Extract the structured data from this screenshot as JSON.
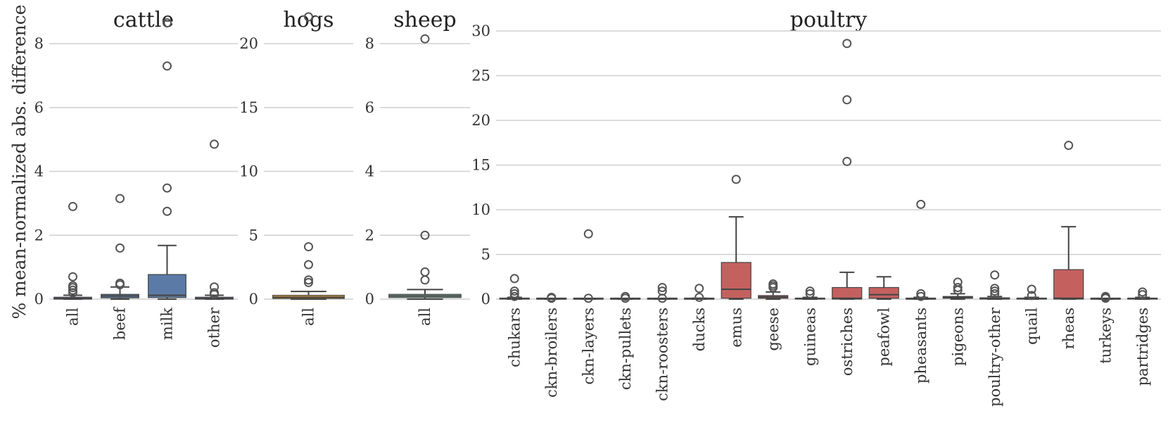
{
  "ylabel": "% mean-normalized abs. difference",
  "chart_data": [
    {
      "type": "box",
      "title": "cattle",
      "ylabel": "% mean-normalized abs. difference",
      "ylim": [
        0,
        9.3
      ],
      "yticks": [
        0,
        2,
        4,
        6,
        8
      ],
      "grid": true,
      "color": "#5b7aa6",
      "categories": [
        "all",
        "beef",
        "milk",
        "other"
      ],
      "boxes": [
        {
          "q1": 0,
          "median": 0.02,
          "q3": 0.06,
          "whislo": 0,
          "whishi": 0.12,
          "fliers": [
            0.2,
            0.28,
            0.36,
            0.42,
            0.7,
            2.9
          ]
        },
        {
          "q1": 0.04,
          "median": 0.1,
          "q3": 0.15,
          "whislo": 0,
          "whishi": 0.38,
          "fliers": [
            0.45,
            0.5,
            1.6,
            3.15
          ]
        },
        {
          "q1": 0.05,
          "median": 0.12,
          "q3": 0.77,
          "whislo": 0,
          "whishi": 1.68,
          "fliers": [
            2.75,
            3.48,
            7.3,
            8.65
          ]
        },
        {
          "q1": 0,
          "median": 0.02,
          "q3": 0.06,
          "whislo": 0,
          "whishi": 0.12,
          "fliers": [
            0.15,
            0.2,
            0.38,
            4.85
          ]
        }
      ]
    },
    {
      "type": "box",
      "title": "hogs",
      "ylim": [
        0,
        23.2
      ],
      "yticks": [
        0,
        5,
        10,
        15,
        20
      ],
      "grid": true,
      "color": "#e8a33d",
      "categories": [
        "all"
      ],
      "boxes": [
        {
          "q1": 0.05,
          "median": 0.15,
          "q3": 0.3,
          "whislo": 0,
          "whishi": 0.6,
          "fliers": [
            1.3,
            1.5,
            2.7,
            4.1,
            22.1
          ]
        }
      ]
    },
    {
      "type": "box",
      "title": "sheep",
      "ylim": [
        0,
        8.6
      ],
      "yticks": [
        0,
        2,
        4,
        6,
        8
      ],
      "grid": true,
      "color": "#7fae9a",
      "categories": [
        "all"
      ],
      "boxes": [
        {
          "q1": 0.05,
          "median": 0.1,
          "q3": 0.15,
          "whislo": 0,
          "whishi": 0.3,
          "fliers": [
            0.6,
            0.85,
            2.0,
            8.15
          ]
        }
      ]
    },
    {
      "type": "box",
      "title": "poultry",
      "ylim": [
        0,
        30.4
      ],
      "yticks": [
        0,
        5,
        10,
        15,
        20,
        25,
        30
      ],
      "grid": true,
      "color": "#c4615f",
      "categories": [
        "chukars",
        "ckn-broilers",
        "ckn-layers",
        "ckn-pullets",
        "ckn-roosters",
        "ducks",
        "emus",
        "geese",
        "guineas",
        "ostriches",
        "peafowl",
        "pheasants",
        "pigeons",
        "poultry-other",
        "quail",
        "rheas",
        "turkeys",
        "partridges"
      ],
      "boxes": [
        {
          "q1": 0,
          "median": 0.05,
          "q3": 0.1,
          "whislo": 0,
          "whishi": 0.2,
          "fliers": [
            0.3,
            0.6,
            0.9,
            2.3
          ]
        },
        {
          "q1": 0,
          "median": 0.02,
          "q3": 0.04,
          "whislo": 0,
          "whishi": 0.06,
          "fliers": [
            0.1,
            0.2
          ]
        },
        {
          "q1": 0,
          "median": 0.02,
          "q3": 0.04,
          "whislo": 0,
          "whishi": 0.06,
          "fliers": [
            0.1,
            7.3
          ]
        },
        {
          "q1": 0,
          "median": 0.02,
          "q3": 0.04,
          "whislo": 0,
          "whishi": 0.06,
          "fliers": [
            0.1,
            0.3
          ]
        },
        {
          "q1": 0,
          "median": 0.02,
          "q3": 0.04,
          "whislo": 0,
          "whishi": 0.06,
          "fliers": [
            0.1,
            0.9,
            1.3
          ]
        },
        {
          "q1": 0,
          "median": 0.02,
          "q3": 0.06,
          "whislo": 0,
          "whishi": 0.1,
          "fliers": [
            0.2,
            1.2
          ]
        },
        {
          "q1": 0.1,
          "median": 1.1,
          "q3": 4.1,
          "whislo": 0,
          "whishi": 9.2,
          "fliers": [
            13.4
          ]
        },
        {
          "q1": 0.1,
          "median": 0.25,
          "q3": 0.4,
          "whislo": 0,
          "whishi": 0.8,
          "fliers": [
            1.3,
            1.5,
            1.7
          ]
        },
        {
          "q1": 0,
          "median": 0.05,
          "q3": 0.1,
          "whislo": 0,
          "whishi": 0.2,
          "fliers": [
            0.6,
            0.9
          ]
        },
        {
          "q1": 0,
          "median": 0.1,
          "q3": 1.3,
          "whislo": 0,
          "whishi": 3.0,
          "fliers": [
            15.4,
            22.3,
            28.6
          ]
        },
        {
          "q1": 0.1,
          "median": 0.5,
          "q3": 1.3,
          "whislo": 0,
          "whishi": 2.5,
          "fliers": []
        },
        {
          "q1": 0,
          "median": 0.02,
          "q3": 0.1,
          "whislo": 0,
          "whishi": 0.2,
          "fliers": [
            0.3,
            0.6,
            10.6
          ]
        },
        {
          "q1": 0.1,
          "median": 0.2,
          "q3": 0.3,
          "whislo": 0,
          "whishi": 0.6,
          "fliers": [
            1.0,
            1.3,
            1.9
          ]
        },
        {
          "q1": 0,
          "median": 0.05,
          "q3": 0.15,
          "whislo": 0,
          "whishi": 0.3,
          "fliers": [
            0.6,
            0.9,
            1.2,
            2.7
          ]
        },
        {
          "q1": 0,
          "median": 0.05,
          "q3": 0.1,
          "whislo": 0,
          "whishi": 0.2,
          "fliers": [
            0.4,
            1.1
          ]
        },
        {
          "q1": 0,
          "median": 0.1,
          "q3": 3.3,
          "whislo": 0,
          "whishi": 8.1,
          "fliers": [
            17.2
          ]
        },
        {
          "q1": 0,
          "median": 0.02,
          "q3": 0.04,
          "whislo": 0,
          "whishi": 0.06,
          "fliers": [
            0.1,
            0.2,
            0.3
          ]
        },
        {
          "q1": 0,
          "median": 0.05,
          "q3": 0.1,
          "whislo": 0,
          "whishi": 0.2,
          "fliers": [
            0.5,
            0.8
          ]
        }
      ]
    }
  ]
}
